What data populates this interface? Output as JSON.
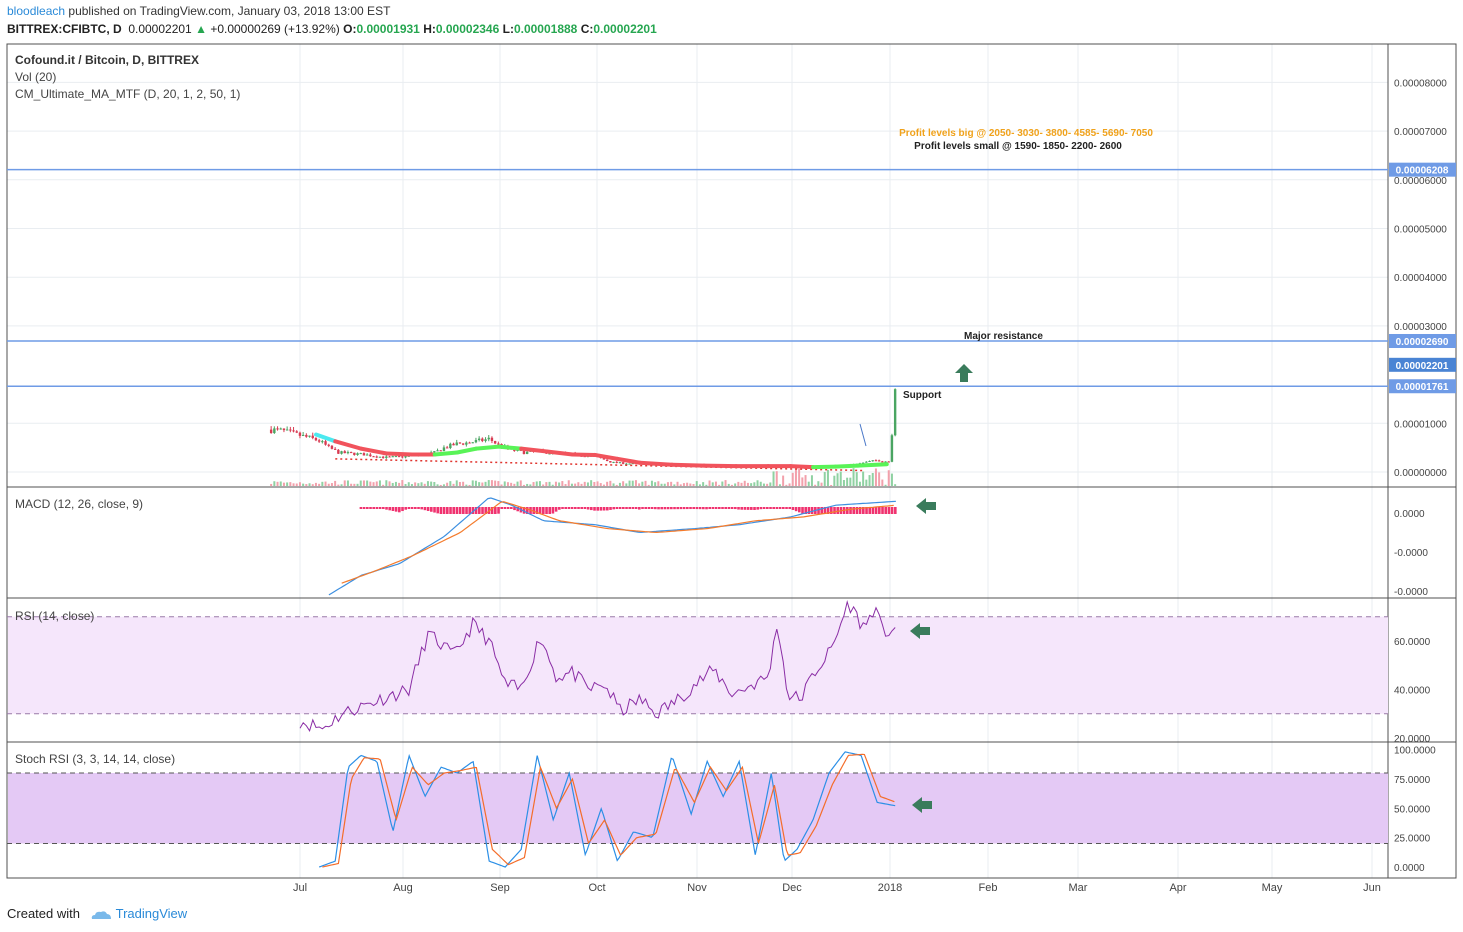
{
  "header": {
    "author": "bloodleach",
    "published": "published on TradingView.com, January 03, 2018 13:00 EST",
    "symbol_line": "BITTREX:CFIBTC, D",
    "last": "0.00002201",
    "change": "+0.00000269 (+13.92%)",
    "o_label": "O:",
    "o_value": "0.00001931",
    "h_label": "H:",
    "h_value": "0.00002346",
    "l_label": "L:",
    "l_value": "0.00001888",
    "c_label": "C:",
    "c_value": "0.00002201"
  },
  "footer": {
    "created_with": "Created with",
    "brand": "TradingView"
  },
  "colors": {
    "grid": "#e9edf1",
    "up_candle": "#4aa562",
    "down_candle": "#d83b52",
    "hline": "#6f9be6",
    "ma_red": "#f1535c",
    "ma_green": "#59f357",
    "ma_cyan": "#4be9ef",
    "macd_line": "#3d8fe0",
    "signal_line": "#f47b2c",
    "histogram": "#f0326f",
    "rsi": "#8a2da5",
    "rsi_band": "#f5e6fb",
    "stoch_band": "#e4c9f5",
    "stoch_k": "#2c8fe6",
    "stoch_d": "#f46d2a",
    "arrow": "#3a7c5c"
  },
  "chart_data": [
    {
      "type": "candlestick",
      "title": "Cofound.it / Bitcoin, D, BITTREX",
      "indicators": [
        "Vol (20)",
        "CM_Ultimate_MA_MTF (D, 20, 1, 2, 50, 1)"
      ],
      "x_tick_labels": [
        "Jul",
        "Aug",
        "Sep",
        "Oct",
        "Nov",
        "Dec",
        "2018",
        "Feb",
        "Mar",
        "Apr",
        "May",
        "Jun"
      ],
      "y_tick_labels": [
        "0.00008000",
        "0.00007000",
        "0.00006000",
        "0.00005000",
        "0.00004000",
        "0.00003000",
        "0.00001000",
        "0.00000000"
      ],
      "ylim": [
        0.0,
        9e-06
      ],
      "price_labels": [
        "0.00006208",
        "0.00002690",
        "0.00002201",
        "0.00001761"
      ],
      "horizontal_levels": [
        6.208e-05,
        2.69e-05,
        1.761e-05
      ],
      "annotations": {
        "profit_big": "Profit levels big @ 2050- 3030- 3800- 4585- 5690- 7050",
        "profit_small": "Profit levels small @ 1590- 1850- 2200- 2600",
        "major_resistance": "Major resistance",
        "support": "Support"
      },
      "close_series": {
        "dates": [
          "2017-06-22",
          "2017-06-25",
          "2017-06-28",
          "2017-07-01",
          "2017-07-04",
          "2017-07-07",
          "2017-07-10",
          "2017-07-13",
          "2017-07-17",
          "2017-07-21",
          "2017-07-25",
          "2017-07-28",
          "2017-08-01",
          "2017-08-05",
          "2017-08-09",
          "2017-08-12",
          "2017-08-15",
          "2017-08-19",
          "2017-08-22",
          "2017-08-26",
          "2017-08-29",
          "2017-09-01",
          "2017-09-05",
          "2017-09-09",
          "2017-09-14",
          "2017-09-19",
          "2017-09-23",
          "2017-09-28",
          "2017-10-02",
          "2017-10-06",
          "2017-10-10",
          "2017-10-16",
          "2017-10-21",
          "2017-10-26",
          "2017-11-01",
          "2017-11-06",
          "2017-11-12",
          "2017-11-18",
          "2017-11-25",
          "2017-11-29",
          "2017-12-03",
          "2017-12-06",
          "2017-12-10",
          "2017-12-14",
          "2017-12-18",
          "2017-12-22",
          "2017-12-25",
          "2017-12-28",
          "2018-01-01",
          "2018-01-03"
        ],
        "values": [
          8.7e-06,
          8.5e-06,
          8e-06,
          7.5e-06,
          7e-06,
          6.4e-06,
          5e-06,
          4e-06,
          3.8e-06,
          3.6e-06,
          3.2e-06,
          3e-06,
          3.1e-06,
          3.3e-06,
          3.6e-06,
          4e-06,
          5e-06,
          5.8e-06,
          6e-06,
          6.4e-06,
          6.8e-06,
          5.5e-06,
          4.5e-06,
          4e-06,
          4.2e-06,
          3.8e-06,
          3.6e-06,
          3.4e-06,
          3e-06,
          2e-06,
          1.8e-06,
          1.6e-06,
          1.4e-06,
          1.5e-06,
          1.3e-06,
          1.5e-06,
          1.3e-06,
          1.2e-06,
          1.4e-06,
          1.3e-06,
          1e-06,
          8e-07,
          9e-07,
          1.1e-06,
          1.4e-06,
          1.7e-06,
          2.1e-06,
          2.4e-06,
          2.1e-06,
          2.201e-05
        ]
      },
      "ma_series": {
        "dates": [
          "2017-07-06",
          "2017-07-12",
          "2017-07-20",
          "2017-07-28",
          "2017-08-05",
          "2017-08-12",
          "2017-08-19",
          "2017-08-25",
          "2017-09-01",
          "2017-09-08",
          "2017-09-16",
          "2017-09-24",
          "2017-10-01",
          "2017-10-08",
          "2017-10-15",
          "2017-10-25",
          "2017-11-04",
          "2017-11-14",
          "2017-11-24",
          "2017-12-01",
          "2017-12-08",
          "2017-12-15",
          "2017-12-22",
          "2017-12-31"
        ],
        "values": [
          7.7e-06,
          6.3e-06,
          4.8e-06,
          3.8e-06,
          3.6e-06,
          3.6e-06,
          4e-06,
          4.8e-06,
          5.2e-06,
          4.8e-06,
          4.2e-06,
          3.6e-06,
          3.5e-06,
          2.7e-06,
          1.9e-06,
          1.5e-06,
          1.3e-06,
          1.2e-06,
          1.2e-06,
          1.2e-06,
          1e-06,
          1.1e-06,
          1.3e-06,
          1.6e-06
        ]
      }
    },
    {
      "type": "line",
      "title": "MACD (12, 26, close, 9)",
      "y_tick_labels": [
        "0.0000",
        "-0.0000",
        "-0.0000"
      ],
      "series": [
        {
          "name": "MACD",
          "dates": [
            "2017-07-10",
            "2017-07-20",
            "2017-08-01",
            "2017-08-15",
            "2017-08-29",
            "2017-09-05",
            "2017-09-15",
            "2017-10-01",
            "2017-10-15",
            "2017-11-01",
            "2017-11-15",
            "2017-12-01",
            "2017-12-15",
            "2018-01-03"
          ],
          "values": [
            -2.1e-06,
            -1.6e-06,
            -1.3e-06,
            -6e-07,
            4e-07,
            2e-07,
            -2e-07,
            -3e-07,
            -5e-07,
            -4e-07,
            -3e-07,
            -1e-07,
            2e-07,
            3e-07
          ]
        },
        {
          "name": "Signal",
          "dates": [
            "2017-07-14",
            "2017-07-24",
            "2017-08-05",
            "2017-08-20",
            "2017-09-02",
            "2017-09-10",
            "2017-09-20",
            "2017-10-05",
            "2017-10-20",
            "2017-11-05",
            "2017-11-20",
            "2017-12-05",
            "2017-12-20",
            "2018-01-03"
          ],
          "values": [
            -1.8e-06,
            -1.5e-06,
            -1.1e-06,
            -5e-07,
            3e-07,
            1e-07,
            -2e-07,
            -4e-07,
            -5e-07,
            -4e-07,
            -2e-07,
            -1e-07,
            1e-07,
            2e-07
          ]
        }
      ]
    },
    {
      "type": "line",
      "title": "RSI (14, close)",
      "y_tick_labels": [
        "60.0000",
        "40.0000",
        "20.0000"
      ],
      "bands": [
        70,
        30
      ],
      "series": [
        {
          "name": "RSI",
          "dates": [
            "2017-07-01",
            "2017-07-08",
            "2017-07-14",
            "2017-07-20",
            "2017-07-28",
            "2017-08-04",
            "2017-08-10",
            "2017-08-18",
            "2017-08-24",
            "2017-08-29",
            "2017-09-03",
            "2017-09-08",
            "2017-09-14",
            "2017-09-19",
            "2017-09-24",
            "2017-09-29",
            "2017-10-04",
            "2017-10-09",
            "2017-10-15",
            "2017-10-20",
            "2017-10-26",
            "2017-11-01",
            "2017-11-07",
            "2017-11-13",
            "2017-11-19",
            "2017-11-24",
            "2017-11-27",
            "2017-11-30",
            "2017-12-04",
            "2017-12-08",
            "2017-12-14",
            "2017-12-19",
            "2017-12-24",
            "2017-12-27",
            "2017-12-30",
            "2018-01-03"
          ],
          "values": [
            27,
            24,
            30,
            33,
            37,
            40,
            63,
            54,
            67,
            60,
            42,
            40,
            62,
            45,
            47,
            40,
            42,
            31,
            36,
            30,
            35,
            42,
            48,
            38,
            42,
            45,
            68,
            38,
            36,
            46,
            57,
            76,
            65,
            74,
            63,
            66
          ]
        }
      ]
    },
    {
      "type": "line",
      "title": "Stoch RSI (3, 3, 14, 14, close)",
      "y_tick_labels": [
        "100.0000",
        "75.0000",
        "50.0000",
        "25.0000",
        "0.0000"
      ],
      "bands": [
        80,
        20
      ],
      "series": [
        {
          "name": "K",
          "dates": [
            "2017-07-07",
            "2017-07-12",
            "2017-07-16",
            "2017-07-20",
            "2017-07-25",
            "2017-07-30",
            "2017-08-04",
            "2017-08-09",
            "2017-08-14",
            "2017-08-19",
            "2017-08-24",
            "2017-08-29",
            "2017-09-03",
            "2017-09-08",
            "2017-09-13",
            "2017-09-18",
            "2017-09-23",
            "2017-09-28",
            "2017-10-03",
            "2017-10-08",
            "2017-10-13",
            "2017-10-19",
            "2017-10-25",
            "2017-10-31",
            "2017-11-05",
            "2017-11-10",
            "2017-11-15",
            "2017-11-20",
            "2017-11-25",
            "2017-11-29",
            "2017-12-03",
            "2017-12-08",
            "2017-12-13",
            "2017-12-18",
            "2017-12-23",
            "2017-12-28",
            "2018-01-03"
          ],
          "values": [
            0,
            5,
            85,
            95,
            90,
            30,
            95,
            60,
            85,
            80,
            90,
            5,
            0,
            15,
            95,
            40,
            80,
            10,
            50,
            5,
            30,
            25,
            95,
            45,
            90,
            60,
            90,
            10,
            80,
            5,
            15,
            40,
            80,
            98,
            95,
            55,
            52
          ]
        },
        {
          "name": "D",
          "dates": [
            "2017-07-08",
            "2017-07-13",
            "2017-07-17",
            "2017-07-21",
            "2017-07-26",
            "2017-07-31",
            "2017-08-05",
            "2017-08-10",
            "2017-08-15",
            "2017-08-20",
            "2017-08-25",
            "2017-08-30",
            "2017-09-04",
            "2017-09-09",
            "2017-09-14",
            "2017-09-19",
            "2017-09-24",
            "2017-09-29",
            "2017-10-04",
            "2017-10-09",
            "2017-10-14",
            "2017-10-20",
            "2017-10-26",
            "2017-11-01",
            "2017-11-06",
            "2017-11-11",
            "2017-11-16",
            "2017-11-21",
            "2017-11-26",
            "2017-11-30",
            "2017-12-04",
            "2017-12-09",
            "2017-12-14",
            "2017-12-19",
            "2017-12-24",
            "2017-12-29",
            "2018-01-03"
          ],
          "values": [
            0,
            3,
            75,
            93,
            92,
            40,
            85,
            70,
            80,
            82,
            85,
            15,
            2,
            8,
            85,
            50,
            75,
            20,
            40,
            10,
            25,
            28,
            85,
            55,
            85,
            65,
            85,
            20,
            70,
            10,
            12,
            35,
            70,
            95,
            96,
            60,
            55
          ]
        }
      ]
    }
  ]
}
